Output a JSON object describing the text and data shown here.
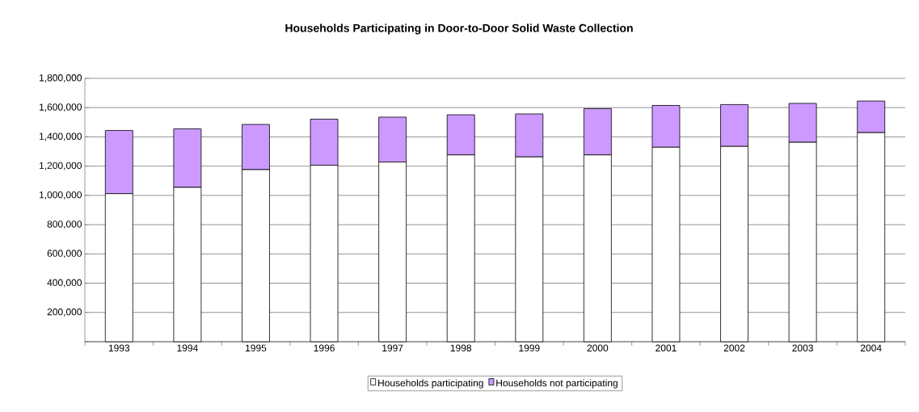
{
  "chart_data": {
    "type": "bar",
    "title": "Households Participating in Door-to-Door Solid Waste Collection",
    "categories": [
      "1993",
      "1994",
      "1995",
      "1996",
      "1997",
      "1998",
      "1999",
      "2000",
      "2001",
      "2002",
      "2003",
      "2004"
    ],
    "series": [
      {
        "name": "Households participating",
        "color": "#ffffff",
        "values": [
          1012000,
          1055000,
          1176000,
          1206000,
          1228000,
          1277000,
          1263000,
          1277000,
          1329000,
          1335000,
          1363000,
          1429000
        ]
      },
      {
        "name": "Households not participating",
        "color": "#cc99ff",
        "values": [
          432000,
          400000,
          309000,
          315000,
          307000,
          274000,
          294000,
          316000,
          286000,
          286000,
          266000,
          216000
        ]
      }
    ],
    "stacked": true,
    "ylim": [
      0,
      1800000
    ],
    "yticks": [
      {
        "value": 0,
        "label": null
      },
      {
        "value": 200000,
        "label": "200,000"
      },
      {
        "value": 400000,
        "label": "400,000"
      },
      {
        "value": 600000,
        "label": "600,000"
      },
      {
        "value": 800000,
        "label": "800,000"
      },
      {
        "value": 1000000,
        "label": "1,000,000"
      },
      {
        "value": 1200000,
        "label": "1,200,000"
      },
      {
        "value": 1400000,
        "label": "1,400,000"
      },
      {
        "value": 1600000,
        "label": "1,600,000"
      },
      {
        "value": 1800000,
        "label": "1,800,000"
      }
    ],
    "grid": "y",
    "legend": "bottom"
  }
}
